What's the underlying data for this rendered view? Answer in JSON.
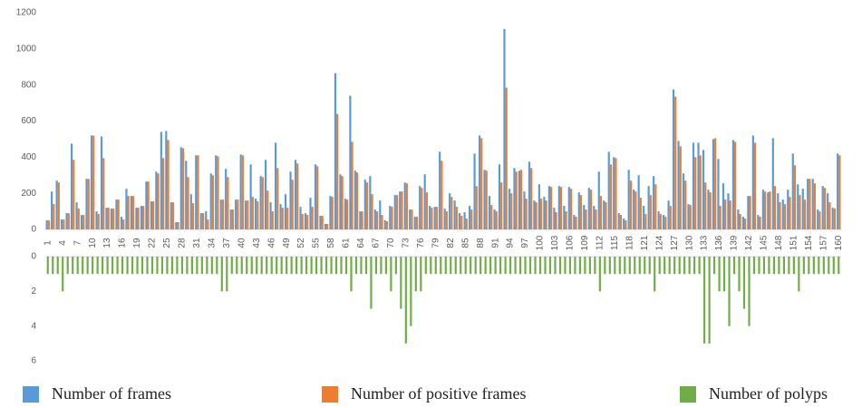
{
  "chart_data": {
    "type": "bar",
    "categories": [
      1,
      null,
      null,
      4,
      null,
      null,
      7,
      null,
      null,
      10,
      null,
      null,
      13,
      null,
      null,
      16,
      null,
      null,
      19,
      null,
      null,
      22,
      null,
      null,
      25,
      null,
      null,
      28,
      null,
      null,
      31,
      null,
      null,
      34,
      null,
      null,
      37,
      null,
      null,
      40,
      null,
      null,
      43,
      null,
      null,
      46,
      null,
      null,
      49,
      null,
      null,
      52,
      null,
      null,
      55,
      null,
      null,
      58,
      null,
      null,
      61,
      null,
      null,
      64,
      null,
      null,
      67,
      null,
      null,
      70,
      null,
      null,
      73,
      null,
      null,
      76,
      null,
      null,
      79,
      null,
      null,
      82,
      null,
      null,
      85,
      null,
      null,
      88,
      null,
      null,
      91,
      null,
      null,
      94,
      null,
      null,
      97,
      null,
      null,
      100,
      null,
      null,
      103,
      null,
      null,
      106,
      null,
      null,
      109,
      null,
      null,
      112,
      null,
      null,
      115,
      null,
      null,
      118,
      null,
      null,
      121,
      null,
      null,
      124,
      null,
      null,
      127,
      null,
      null,
      130,
      null,
      null,
      133,
      null,
      null,
      136,
      null,
      null,
      139,
      null,
      null,
      142,
      null,
      null,
      145,
      null,
      null,
      148,
      null,
      null,
      151,
      null,
      null,
      154,
      null,
      null,
      157,
      null,
      null,
      160
    ],
    "series": [
      {
        "name": "Number of frames",
        "color": "#5b9bd5",
        "values": [
          50,
          210,
          270,
          55,
          90,
          475,
          150,
          80,
          280,
          520,
          100,
          515,
          120,
          115,
          165,
          70,
          225,
          185,
          120,
          130,
          265,
          155,
          320,
          540,
          545,
          150,
          40,
          455,
          380,
          195,
          410,
          90,
          100,
          310,
          410,
          165,
          335,
          110,
          165,
          415,
          160,
          360,
          170,
          295,
          385,
          150,
          480,
          140,
          195,
          320,
          385,
          125,
          90,
          175,
          360,
          75,
          30,
          185,
          865,
          305,
          170,
          740,
          325,
          100,
          275,
          295,
          110,
          160,
          50,
          130,
          190,
          210,
          260,
          110,
          70,
          240,
          305,
          130,
          125,
          430,
          115,
          200,
          160,
          90,
          95,
          130,
          420,
          520,
          330,
          185,
          110,
          360,
          1110,
          225,
          340,
          325,
          210,
          375,
          160,
          250,
          180,
          240,
          120,
          240,
          130,
          235,
          80,
          205,
          135,
          230,
          130,
          320,
          160,
          430,
          400,
          90,
          60,
          330,
          220,
          300,
          130,
          240,
          295,
          100,
          80,
          160,
          775,
          490,
          310,
          140,
          480,
          480,
          440,
          220,
          500,
          390,
          255,
          200,
          495,
          110,
          70,
          185,
          520,
          80,
          220,
          205,
          505,
          200,
          165,
          220,
          420,
          250,
          225,
          280,
          280,
          110,
          240,
          200,
          120,
          420
        ]
      },
      {
        "name": "Number of positive frames",
        "color": "#ed7d31",
        "values": [
          50,
          140,
          260,
          55,
          90,
          385,
          115,
          80,
          280,
          520,
          85,
          395,
          120,
          115,
          165,
          55,
          185,
          185,
          120,
          130,
          265,
          155,
          310,
          395,
          495,
          150,
          40,
          450,
          290,
          145,
          410,
          90,
          55,
          300,
          405,
          165,
          290,
          110,
          165,
          410,
          160,
          180,
          155,
          290,
          215,
          100,
          340,
          120,
          120,
          275,
          365,
          85,
          80,
          125,
          350,
          75,
          30,
          180,
          640,
          295,
          165,
          485,
          315,
          100,
          260,
          195,
          100,
          80,
          45,
          125,
          190,
          210,
          255,
          110,
          70,
          230,
          205,
          120,
          125,
          380,
          100,
          180,
          125,
          75,
          60,
          110,
          240,
          505,
          325,
          135,
          100,
          260,
          785,
          200,
          320,
          330,
          170,
          340,
          150,
          170,
          160,
          235,
          95,
          235,
          100,
          225,
          70,
          190,
          110,
          220,
          110,
          185,
          150,
          360,
          395,
          80,
          50,
          270,
          210,
          175,
          85,
          190,
          250,
          85,
          70,
          130,
          735,
          460,
          270,
          135,
          400,
          410,
          260,
          205,
          505,
          130,
          165,
          160,
          485,
          85,
          60,
          185,
          480,
          70,
          210,
          210,
          240,
          150,
          140,
          180,
          355,
          190,
          165,
          280,
          255,
          100,
          230,
          150,
          115,
          410
        ]
      },
      {
        "name": "Number of polyps",
        "color": "#70ad47",
        "axis": "y2",
        "values": [
          1,
          1,
          1,
          2,
          1,
          1,
          1,
          1,
          1,
          1,
          1,
          1,
          1,
          1,
          1,
          1,
          1,
          1,
          1,
          1,
          1,
          1,
          1,
          1,
          1,
          1,
          1,
          1,
          1,
          1,
          1,
          1,
          1,
          1,
          1,
          2,
          2,
          1,
          1,
          1,
          1,
          1,
          1,
          1,
          1,
          1,
          1,
          1,
          1,
          1,
          1,
          1,
          1,
          1,
          1,
          1,
          1,
          1,
          1,
          1,
          1,
          2,
          1,
          1,
          1,
          3,
          1,
          1,
          1,
          2,
          1,
          3,
          5,
          4,
          2,
          2,
          1,
          1,
          1,
          1,
          1,
          1,
          1,
          1,
          1,
          1,
          1,
          1,
          1,
          1,
          1,
          1,
          1,
          1,
          1,
          1,
          1,
          1,
          1,
          1,
          1,
          1,
          1,
          1,
          1,
          1,
          1,
          1,
          1,
          1,
          1,
          2,
          1,
          1,
          1,
          1,
          1,
          1,
          1,
          1,
          1,
          1,
          2,
          1,
          1,
          1,
          1,
          1,
          1,
          1,
          1,
          1,
          5,
          5,
          1,
          2,
          2,
          4,
          1,
          2,
          3,
          4,
          1,
          1,
          1,
          1,
          1,
          1,
          1,
          1,
          1,
          2,
          1,
          1,
          1,
          1,
          1,
          1,
          1,
          1
        ]
      }
    ],
    "ylim": [
      0,
      1200
    ],
    "yticks": [
      0,
      200,
      400,
      600,
      800,
      1000,
      1200
    ],
    "y2lim": [
      0,
      6
    ],
    "y2ticks": [
      0,
      2,
      4,
      6
    ],
    "legend": "bottom"
  }
}
